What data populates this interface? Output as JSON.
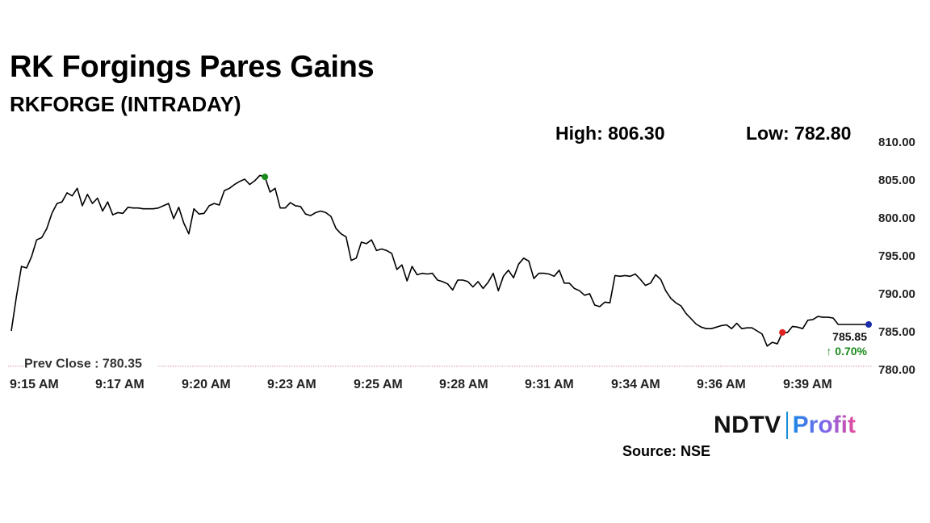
{
  "header": {
    "title": "RK Forgings Pares Gains",
    "subtitle": "RKFORGE (INTRADAY)"
  },
  "stats": {
    "high_label": "High: 806.30",
    "low_label": "Low: 782.80"
  },
  "footer": {
    "brand_ndtv": "NDTV",
    "brand_profit": "Profit",
    "source": "Source: NSE"
  },
  "colors": {
    "line": "#000000",
    "high_marker": "#1a8a1a",
    "low_marker": "#e02020",
    "last_marker": "#1a2ea8",
    "prev_close_line": "#d8909a",
    "change_up": "#1a8a1a"
  },
  "chart_data": {
    "type": "line",
    "x_ticks": [
      "9:15 AM",
      "9:17 AM",
      "9:20 AM",
      "9:23 AM",
      "9:25 AM",
      "9:28 AM",
      "9:31 AM",
      "9:34 AM",
      "9:36 AM",
      "9:39 AM"
    ],
    "y_ticks": [
      "810.00",
      "805.00",
      "800.00",
      "795.00",
      "790.00",
      "785.00",
      "780.00"
    ],
    "ylim": [
      780,
      810
    ],
    "prev_close": 780.35,
    "prev_close_label": "Prev Close : 780.35",
    "last_value_label": "785.85",
    "change_label": "↑ 0.70%",
    "high_index": 50,
    "low_index": 152,
    "series": [
      {
        "values": [
          785,
          789.5,
          793.5,
          793.3,
          794.8,
          797,
          797.3,
          798.5,
          800.5,
          801.8,
          802,
          803.2,
          802.8,
          803.8,
          801.5,
          803,
          801.8,
          802.5,
          800.8,
          802,
          800.3,
          800.6,
          800.5,
          801.3,
          801.2,
          801.2,
          801.1,
          801.1,
          801.1,
          801.2,
          801.5,
          801.8,
          799.8,
          801.3,
          799.2,
          797.8,
          801.1,
          800.4,
          800.5,
          801.5,
          801.8,
          801.6,
          803.5,
          803.8,
          804.3,
          804.7,
          805,
          804.3,
          804.8,
          805.5,
          805.3,
          803.3,
          803.8,
          801.2,
          801.2,
          801.9,
          801.5,
          801.4,
          800.4,
          800.2,
          800.6,
          800.8,
          800.6,
          800.1,
          798.5,
          797.8,
          797.4,
          794.3,
          794.6,
          796.7,
          796.5,
          797,
          795.6,
          795.8,
          795.6,
          795.2,
          793.1,
          793.7,
          791.6,
          793.5,
          792.4,
          792.6,
          792.5,
          792.6,
          791.7,
          791.5,
          791.2,
          790.4,
          791.7,
          791.7,
          791.5,
          790.8,
          791.5,
          790.6,
          791.4,
          792.6,
          790.3,
          792.2,
          793,
          792,
          793.8,
          794.6,
          794.2,
          791.9,
          792.6,
          792.6,
          792.5,
          792.2,
          793,
          791.3,
          791.3,
          790.6,
          790.3,
          789.7,
          789.9,
          788.4,
          788.2,
          788.8,
          788.7,
          792.3,
          792.2,
          792.3,
          792.2,
          792.5,
          791.8,
          791,
          791.3,
          792.4,
          791.8,
          790.3,
          789.3,
          788.7,
          788.3,
          787.3,
          786.6,
          785.9,
          785.5,
          785.3,
          785.3,
          785.5,
          785.7,
          785.8,
          785.3,
          786,
          785.3,
          785.4,
          785.4,
          785,
          784.6,
          783,
          783.5,
          783.3,
          784.8,
          784.8,
          785.6,
          785.5,
          785.3,
          786.4,
          786.5,
          786.9,
          786.8,
          786.8,
          786.7,
          785.85,
          785.85,
          785.85,
          785.85,
          785.85,
          785.85,
          785.85
        ]
      }
    ]
  }
}
